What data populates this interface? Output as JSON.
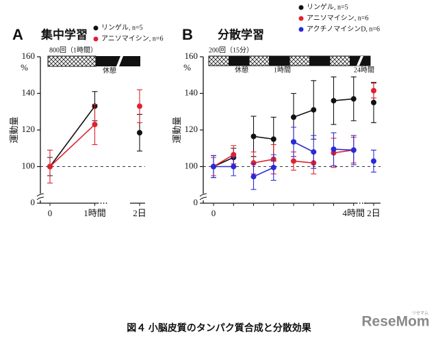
{
  "figure_caption": "図４ 小脳皮質のタンパク質合成と分散効果",
  "logo": {
    "text": "ReseMom",
    "subtext": "リセマム"
  },
  "chart_data": [
    {
      "type": "line",
      "panel": "A",
      "title": "集中学習",
      "y_label": "運動量",
      "y_unit": "%",
      "categories": [
        "0",
        "1時間",
        "2日"
      ],
      "ylim": [
        0,
        160
      ],
      "y_break": [
        0,
        80
      ],
      "yticks": [
        0,
        100,
        120,
        140,
        160
      ],
      "x_break": [
        1,
        2
      ],
      "reference_line": 100,
      "schedule": {
        "labels": [
          "800回（1時間）",
          "休憩"
        ]
      },
      "series": [
        {
          "name": "リンゲル, n=5",
          "color": "#111111",
          "values": [
            100,
            133,
            118.5
          ],
          "errors": [
            5,
            8,
            10
          ],
          "connect": [
            [
              0,
              1
            ]
          ]
        },
        {
          "name": "アニソマイシン, n=6",
          "color": "#e0202e",
          "values": [
            100,
            123,
            133
          ],
          "errors": [
            9,
            11,
            9
          ],
          "connect": [
            [
              0,
              1
            ]
          ]
        }
      ]
    },
    {
      "type": "line",
      "panel": "B",
      "title": "分散学習",
      "y_label": "運動量",
      "y_unit": "%",
      "categories": [
        "0",
        null,
        null,
        null,
        null,
        null,
        null,
        "4時間",
        "2日"
      ],
      "ylim": [
        0,
        160
      ],
      "y_break": [
        0,
        80
      ],
      "yticks": [
        0,
        100,
        120,
        140,
        160
      ],
      "x_break": [
        7,
        8
      ],
      "reference_line": 100,
      "schedule": {
        "labels": [
          "200回（15分）",
          "休憩",
          "1時間",
          "24時間"
        ]
      },
      "series": [
        {
          "name": "リンゲル, n=5",
          "color": "#111111",
          "values": [
            100,
            105,
            116.5,
            115,
            127,
            131,
            136,
            137,
            135
          ],
          "errors": [
            6,
            5,
            11,
            12,
            13,
            16,
            13,
            12,
            11
          ],
          "connect": [
            [
              0,
              1
            ],
            [
              2,
              3
            ],
            [
              4,
              5
            ],
            [
              6,
              7
            ]
          ]
        },
        {
          "name": "アニソマイシン, n=6",
          "color": "#e0202e",
          "values": [
            100,
            106.5,
            102,
            104,
            103,
            102,
            107.5,
            109,
            141.5
          ],
          "errors": [
            5,
            5,
            6,
            8,
            5,
            6,
            8,
            7,
            4
          ],
          "connect": [
            [
              0,
              1
            ],
            [
              2,
              3
            ],
            [
              4,
              5
            ],
            [
              6,
              7
            ]
          ]
        },
        {
          "name": "アクチノマイシンD, n=6",
          "color": "#2a2ad8",
          "values": [
            100,
            100,
            94.5,
            99.5,
            113.5,
            108,
            109.5,
            109,
            103
          ],
          "errors": [
            6,
            5,
            7,
            7,
            8,
            9,
            9,
            8,
            6
          ],
          "connect": [
            [
              0,
              1
            ],
            [
              2,
              3
            ],
            [
              4,
              5
            ],
            [
              6,
              7
            ]
          ]
        }
      ]
    }
  ]
}
